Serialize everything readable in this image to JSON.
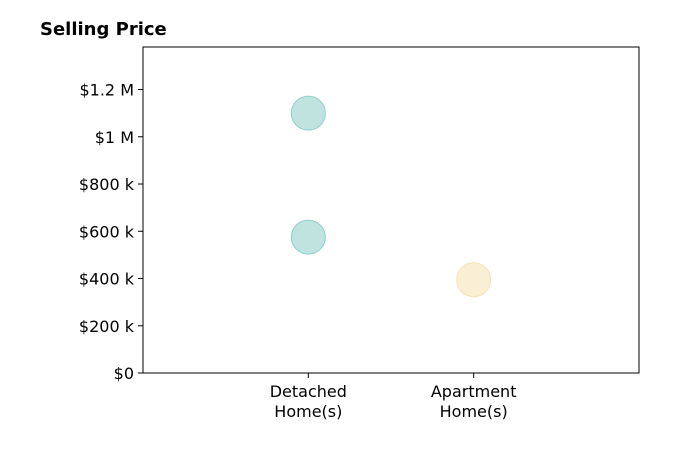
{
  "chart_data": {
    "type": "scatter",
    "title": "Selling Price",
    "categories": [
      "Detached Home(s)",
      "Apartment Home(s)"
    ],
    "category_labels": [
      [
        "Detached",
        "Home(s)"
      ],
      [
        "Apartment",
        "Home(s)"
      ]
    ],
    "xlim": [
      -1,
      2
    ],
    "ylim": [
      0,
      1380000
    ],
    "y_ticks": [
      0,
      200000,
      400000,
      600000,
      800000,
      1000000,
      1200000
    ],
    "y_tick_labels": [
      "$0",
      "$200 k",
      "$400 k",
      "$600 k",
      "$800 k",
      "$1 M",
      "$1.2 M"
    ],
    "grid": false,
    "points": [
      {
        "category": "Detached Home(s)",
        "y": 1100000,
        "color": "#7fc9c1"
      },
      {
        "category": "Detached Home(s)",
        "y": 575000,
        "color": "#7fc9c1"
      },
      {
        "category": "Apartment Home(s)",
        "y": 395000,
        "color": "#f5dfaa"
      }
    ],
    "marker_opacity": 0.5
  }
}
